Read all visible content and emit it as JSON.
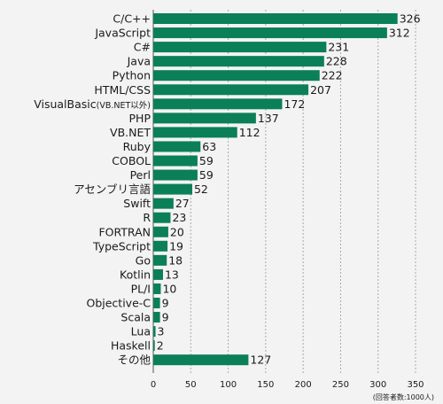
{
  "chart_data": {
    "type": "bar",
    "orientation": "horizontal",
    "categories": [
      "C/C++",
      "JavaScript",
      "C#",
      "Java",
      "Python",
      "HTML/CSS",
      "VisualBasic",
      "PHP",
      "VB.NET",
      "Ruby",
      "COBOL",
      "Perl",
      "アセンブリ言語",
      "Swift",
      "R",
      "FORTRAN",
      "TypeScript",
      "Go",
      "Kotlin",
      "PL/I",
      "Objective-C",
      "Scala",
      "Lua",
      "Haskell",
      "その他"
    ],
    "category_notes": {
      "VisualBasic": "(VB.NET以外)"
    },
    "values": [
      326,
      312,
      231,
      228,
      222,
      207,
      172,
      137,
      112,
      63,
      59,
      59,
      52,
      27,
      23,
      20,
      19,
      18,
      13,
      10,
      9,
      9,
      3,
      2,
      127
    ],
    "xlim": [
      0,
      350
    ],
    "x_ticks": [
      0,
      50,
      100,
      150,
      200,
      250,
      300,
      350
    ],
    "unit_note": "(回答者数:1000人)",
    "grid": true,
    "bar_color": "#0b7f57"
  }
}
